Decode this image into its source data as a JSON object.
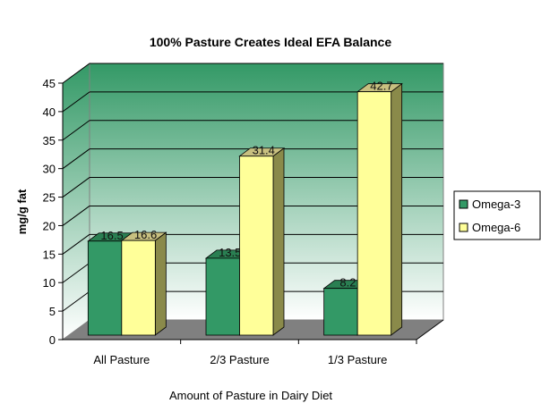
{
  "chart_data": {
    "type": "bar",
    "title": "100% Pasture Creates Ideal EFA Balance",
    "xlabel": "Amount of Pasture in Dairy Diet",
    "ylabel": "mg/g fat",
    "categories": [
      "All Pasture",
      "2/3 Pasture",
      "1/3 Pasture"
    ],
    "series": [
      {
        "name": "Omega-3",
        "values": [
          16.5,
          13.5,
          8.2
        ],
        "color": "#339966"
      },
      {
        "name": "Omega-6",
        "values": [
          16.6,
          31.4,
          42.7
        ],
        "color": "#FFFF99"
      }
    ],
    "data_labels": [
      [
        "16.5",
        "13.5",
        "8.2"
      ],
      [
        "16.6",
        "31.4",
        "42.7"
      ]
    ],
    "ylim": [
      0,
      45
    ],
    "yticks": [
      0,
      5,
      10,
      15,
      20,
      25,
      30,
      35,
      40,
      45
    ],
    "grid": true,
    "legend": "right",
    "style": "3d-clustered-column",
    "wall_gradient": [
      "#339966",
      "#ffffff"
    ],
    "floor_color": "#808080"
  }
}
